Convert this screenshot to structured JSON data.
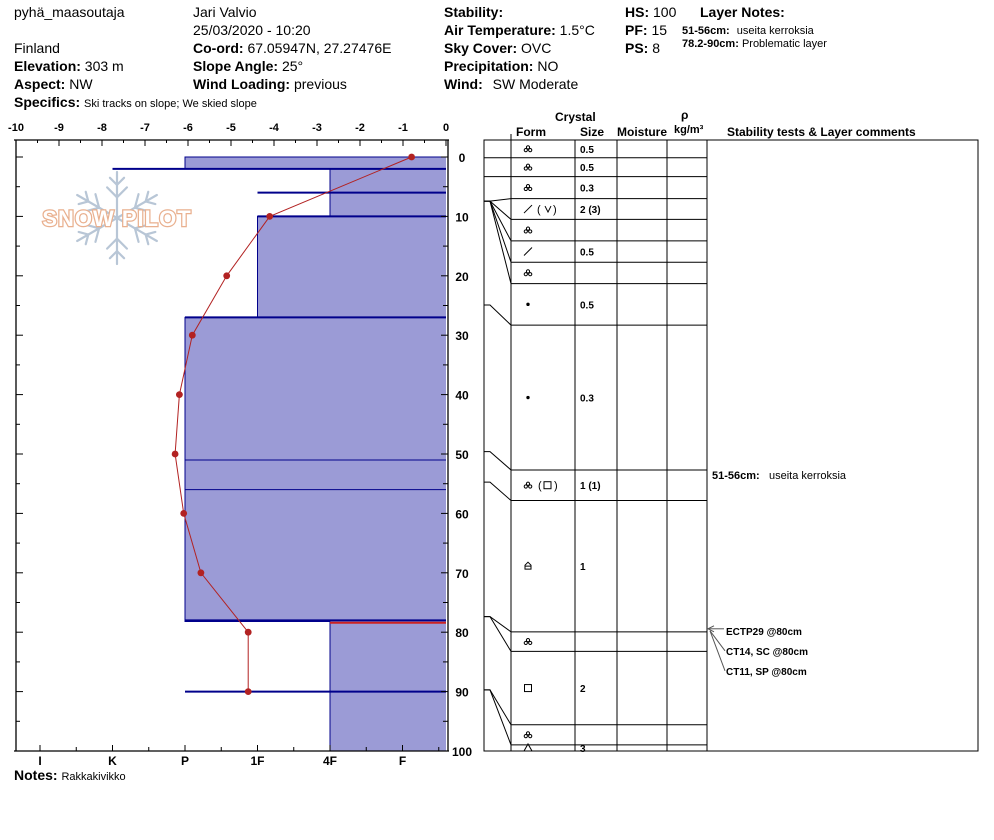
{
  "header": {
    "location": "pyhä_maasoutaja",
    "country": "Finland",
    "observer": "Jari Valvio",
    "datetime": "25/03/2020 - 10:20",
    "elevation_label": "Elevation:",
    "elevation": "303 m",
    "aspect_label": "Aspect:",
    "aspect": "NW",
    "specifics_label": "Specifics:",
    "specifics": "Ski tracks on slope; We skied slope",
    "coord_label": "Co-ord:",
    "coord": "67.05947N, 27.27476E",
    "slope_label": "Slope Angle:",
    "slope": "25°",
    "wind_loading_label": "Wind Loading:",
    "wind_loading": "previous",
    "stability_label": "Stability:",
    "stability": "",
    "air_temp_label": "Air Temperature:",
    "air_temp": "1.5°C",
    "sky_label": "Sky Cover:",
    "sky": "OVC",
    "precip_label": "Precipitation:",
    "precip": "NO",
    "wind_label": "Wind:",
    "wind": "SW Moderate",
    "hs_label": "HS:",
    "hs": "100",
    "pf_label": "PF:",
    "pf": "15",
    "ps_label": "PS:",
    "ps": "8",
    "layer_notes_title": "Layer Notes:",
    "layer_notes": [
      {
        "range": "51-56cm:",
        "text": "useita kerroksia"
      },
      {
        "range": "78.2-90cm:",
        "text": "Problematic layer"
      }
    ],
    "notes_label": "Notes:",
    "notes": "Rakkakivikko"
  },
  "logo": {
    "text": "SNOW PILOT"
  },
  "table_headers": {
    "crystal": "Crystal",
    "form": "Form",
    "size": "Size",
    "moisture": "Moisture",
    "rho": "ρ",
    "density_unit": "kg/m³",
    "stability": "Stability tests & Layer comments"
  },
  "colors": {
    "hardness_fill": "#9b9bd6",
    "boundary": "#00008b",
    "temperature": "#b22222",
    "critical": "#cc2222"
  },
  "chart_data": {
    "type": "area",
    "y_axis": {
      "range": [
        0,
        100
      ],
      "ticks": [
        0,
        10,
        20,
        30,
        40,
        50,
        60,
        70,
        80,
        90,
        100
      ],
      "direction": "down"
    },
    "temp_axis": {
      "range": [
        -10,
        0
      ],
      "ticks": [
        -10,
        -9,
        -8,
        -7,
        -6,
        -5,
        -4,
        -3,
        -2,
        -1,
        0
      ]
    },
    "hardness_axis": {
      "labels": [
        "I",
        "K",
        "P",
        "1F",
        "4F",
        "F"
      ],
      "values": [
        5.6,
        4.6,
        3.6,
        2.6,
        1.6,
        0.6
      ]
    },
    "hardness_layers": [
      {
        "top": 0,
        "bottom": 2,
        "hardness": 3.6
      },
      {
        "top": 2,
        "bottom": 10,
        "hardness": 1.6
      },
      {
        "top": 10,
        "bottom": 27,
        "hardness": 2.6
      },
      {
        "top": 27,
        "bottom": 78.2,
        "hardness": 3.6
      },
      {
        "top": 78.2,
        "bottom": 100,
        "hardness": 1.6
      }
    ],
    "boundary_lines": [
      {
        "depth": 2,
        "hardness": 4.6
      },
      {
        "depth": 6,
        "hardness": 2.6
      },
      {
        "depth": 10,
        "hardness": 2.6
      },
      {
        "depth": 27,
        "hardness": 3.6
      },
      {
        "depth": 51,
        "hardness": 3.6
      },
      {
        "depth": 56,
        "hardness": 3.6
      },
      {
        "depth": 78,
        "hardness": 3.6
      },
      {
        "depth": 90,
        "hardness": 3.6
      }
    ],
    "critical_line": {
      "depth": 78.4,
      "from_hardness": 1.6
    },
    "temperature_profile": [
      {
        "depth": 0,
        "temp": -0.8
      },
      {
        "depth": 10,
        "temp": -4.1
      },
      {
        "depth": 20,
        "temp": -5.1
      },
      {
        "depth": 30,
        "temp": -5.9
      },
      {
        "depth": 40,
        "temp": -6.2
      },
      {
        "depth": 50,
        "temp": -6.3
      },
      {
        "depth": 60,
        "temp": -6.1
      },
      {
        "depth": 70,
        "temp": -5.7
      },
      {
        "depth": 80,
        "temp": -4.6
      },
      {
        "depth": 90,
        "temp": -4.6
      }
    ],
    "layers": [
      {
        "top": 0,
        "bottom": 2.9,
        "form": "decomposing",
        "size": "0.5"
      },
      {
        "top": 2.9,
        "bottom": 6,
        "form": "decomposing",
        "size": "0.5"
      },
      {
        "top": 6,
        "bottom": 9.6,
        "form": "decomposing",
        "size": "0.3"
      },
      {
        "top": 9.6,
        "bottom": 13,
        "form": "precip-faceted",
        "size": "2 (3)"
      },
      {
        "top": 13,
        "bottom": 16.5,
        "form": "decomposing",
        "size": ""
      },
      {
        "top": 16.5,
        "bottom": 20,
        "form": "precip",
        "size": "0.5"
      },
      {
        "top": 20,
        "bottom": 23.5,
        "form": "decomposing",
        "size": ""
      },
      {
        "top": 23.5,
        "bottom": 30.3,
        "form": "rounded",
        "size": "0.5"
      },
      {
        "top": 30.3,
        "bottom": 54,
        "form": "rounded",
        "size": "0.3"
      },
      {
        "top": 54,
        "bottom": 59,
        "form": "decomposing-faceted",
        "size": "1 (1)"
      },
      {
        "top": 59,
        "bottom": 80.5,
        "form": "depth-hoar",
        "size": "1"
      },
      {
        "top": 80.5,
        "bottom": 83.7,
        "form": "decomposing",
        "size": ""
      },
      {
        "top": 83.7,
        "bottom": 95.7,
        "form": "faceted",
        "size": "2"
      },
      {
        "top": 95.7,
        "bottom": 99,
        "form": "decomposing",
        "size": ""
      },
      {
        "top": 99,
        "bottom": 100,
        "form": "surface-hoar",
        "size": "3"
      }
    ],
    "stability_tests": [
      {
        "label": "ECTP29 @80cm",
        "depth": 80
      },
      {
        "label": "CT14, SC @80cm",
        "depth": 80
      },
      {
        "label": "CT11, SP @80cm",
        "depth": 80
      }
    ],
    "layer_comments": [
      {
        "range": "51-56cm:",
        "text": "useita kerroksia",
        "depth": 54.8
      }
    ]
  }
}
